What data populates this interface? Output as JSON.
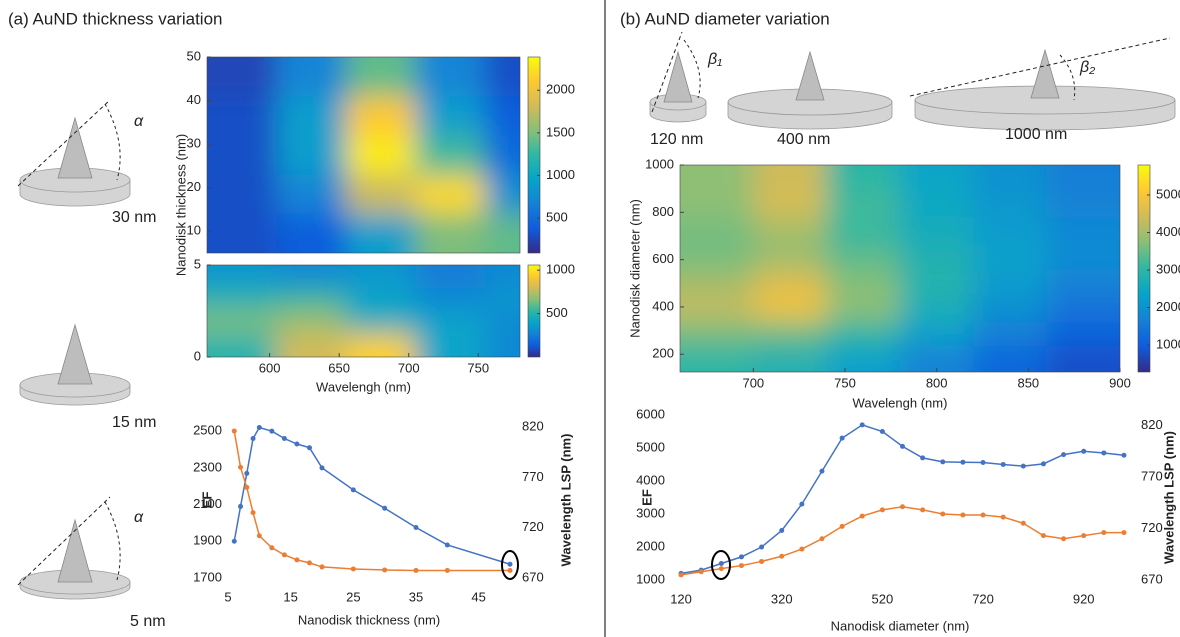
{
  "panels": {
    "a": "(a) AuND thickness variation",
    "b": "(b) AuND diameter variation"
  },
  "illustrations": {
    "a_labels": [
      "30 nm",
      "15 nm",
      "5 nm"
    ],
    "a_angle": "α",
    "b_labels": [
      "120 nm",
      "400 nm",
      "1000 nm"
    ],
    "b_angles": [
      "β₁",
      "β₂"
    ]
  },
  "chart_data": [
    {
      "type": "heatmap",
      "ylabel": "Nanodisk thickness (nm)",
      "colormap": "parula",
      "x": [
        580,
        630,
        680,
        730,
        780
      ],
      "y": [
        9.5,
        18.5,
        27.5,
        36.5,
        45.5
      ],
      "z": [
        [
          300,
          400,
          900,
          1500,
          1400
        ],
        [
          300,
          700,
          1800,
          2200,
          800
        ],
        [
          300,
          900,
          2300,
          1300,
          500
        ],
        [
          300,
          900,
          2100,
          900,
          400
        ],
        [
          250,
          700,
          1400,
          700,
          300
        ]
      ],
      "xlim": [
        555,
        780
      ],
      "ylim": [
        5,
        50
      ],
      "yticks": [
        10,
        20,
        30,
        40,
        50
      ],
      "clim": [
        90,
        2390
      ],
      "cticks": [
        500,
        1000,
        1500,
        2000
      ]
    },
    {
      "type": "heatmap",
      "xlabel": "Wavelengh (nm)",
      "colormap": "parula",
      "x": [
        580,
        630,
        680,
        730,
        780
      ],
      "y": [
        0.625,
        1.875,
        3.125,
        4.375
      ],
      "z": [
        [
          500,
          800,
          950,
          400,
          300
        ],
        [
          650,
          700,
          450,
          400,
          300
        ],
        [
          500,
          550,
          400,
          300,
          350
        ],
        [
          350,
          300,
          350,
          250,
          300
        ]
      ],
      "xlim": [
        555,
        780
      ],
      "ylim": [
        0,
        5
      ],
      "xticks": [
        600,
        650,
        700,
        750
      ],
      "yticks": [
        0,
        5
      ],
      "clim": [
        0,
        1060
      ],
      "cticks": [
        500,
        1000
      ]
    },
    {
      "type": "dualline",
      "xlabel": "Nanodisk thickness (nm)",
      "ylabel": "EF",
      "y2label": "Wavelength LSP (nm)",
      "x": [
        6,
        7,
        8,
        9,
        10,
        12,
        14,
        16,
        18,
        20,
        25,
        30,
        35,
        40,
        50
      ],
      "series": [
        {
          "color": "#4472c4",
          "values": [
            1900,
            2090,
            2270,
            2460,
            2520,
            2500,
            2460,
            2430,
            2410,
            2300,
            2180,
            2080,
            1975,
            1880,
            1775
          ]
        },
        {
          "color": "#ed7d31",
          "axis": "y2",
          "values": [
            816,
            780,
            760,
            735,
            712,
            700,
            693,
            688,
            685,
            681,
            679,
            678,
            677.5,
            677.5,
            677.5
          ]
        }
      ],
      "xlim": [
        5,
        50
      ],
      "xticks": [
        5,
        15,
        25,
        35,
        45
      ],
      "ylim": [
        1700,
        2550
      ],
      "yticks": [
        1700,
        1900,
        2100,
        2300,
        2500
      ],
      "y2lim": [
        670,
        825
      ],
      "y2ticks": [
        670,
        720,
        770,
        820
      ]
    },
    {
      "type": "heatmap",
      "xlabel": "Wavelengh (nm)",
      "ylabel": "Nanodisk diameter (nm)",
      "colormap": "parula",
      "x": [
        680,
        720,
        760,
        800,
        840,
        880
      ],
      "y": [
        175,
        285,
        395,
        505,
        615,
        725,
        835,
        945
      ],
      "z": [
        [
          3000,
          2800,
          2300,
          1700,
          1200,
          800
        ],
        [
          3600,
          3500,
          3000,
          2300,
          1600,
          1100
        ],
        [
          4300,
          4900,
          3800,
          2700,
          2000,
          1400
        ],
        [
          4000,
          4600,
          3700,
          2900,
          2200,
          1700
        ],
        [
          3600,
          3900,
          3400,
          2800,
          2300,
          1900
        ],
        [
          3600,
          4000,
          3100,
          2600,
          2200,
          1800
        ],
        [
          3800,
          4500,
          3200,
          2500,
          2100,
          1700
        ],
        [
          3800,
          4400,
          3000,
          2400,
          2000,
          1600
        ]
      ],
      "xlim": [
        660,
        900
      ],
      "ylim": [
        125,
        1000
      ],
      "xticks": [
        700,
        750,
        800,
        850,
        900
      ],
      "yticks": [
        200,
        400,
        600,
        800,
        1000
      ],
      "clim": [
        280,
        5800
      ],
      "cticks": [
        1000,
        2000,
        3000,
        4000,
        5000
      ]
    },
    {
      "type": "dualline",
      "xlabel": "Nanodisk diameter (nm)",
      "ylabel": "EF",
      "y2label": "Wavelength LSP (nm)",
      "x": [
        120,
        160,
        200,
        240,
        280,
        320,
        360,
        400,
        440,
        480,
        520,
        560,
        600,
        640,
        680,
        720,
        760,
        800,
        840,
        880,
        920,
        960,
        1000
      ],
      "series": [
        {
          "color": "#4472c4",
          "values": [
            1200,
            1300,
            1500,
            1700,
            2000,
            2500,
            3300,
            4300,
            5300,
            5700,
            5500,
            5050,
            4700,
            4580,
            4570,
            4560,
            4500,
            4450,
            4520,
            4800,
            4900,
            4850,
            4780
          ]
        },
        {
          "color": "#ed7d31",
          "axis": "y2",
          "values": [
            675,
            678,
            681,
            684,
            688,
            693,
            700,
            710,
            722,
            732,
            738,
            741,
            738,
            734,
            733,
            733,
            731,
            725,
            713,
            710,
            713,
            716,
            716
          ]
        }
      ],
      "xlim": [
        100,
        1010
      ],
      "xticks": [
        120,
        320,
        520,
        720,
        920
      ],
      "ylim": [
        1000,
        6000
      ],
      "yticks": [
        1000,
        2000,
        3000,
        4000,
        5000,
        6000
      ],
      "y2lim": [
        670,
        830
      ],
      "y2ticks": [
        670,
        720,
        770,
        820
      ]
    }
  ]
}
